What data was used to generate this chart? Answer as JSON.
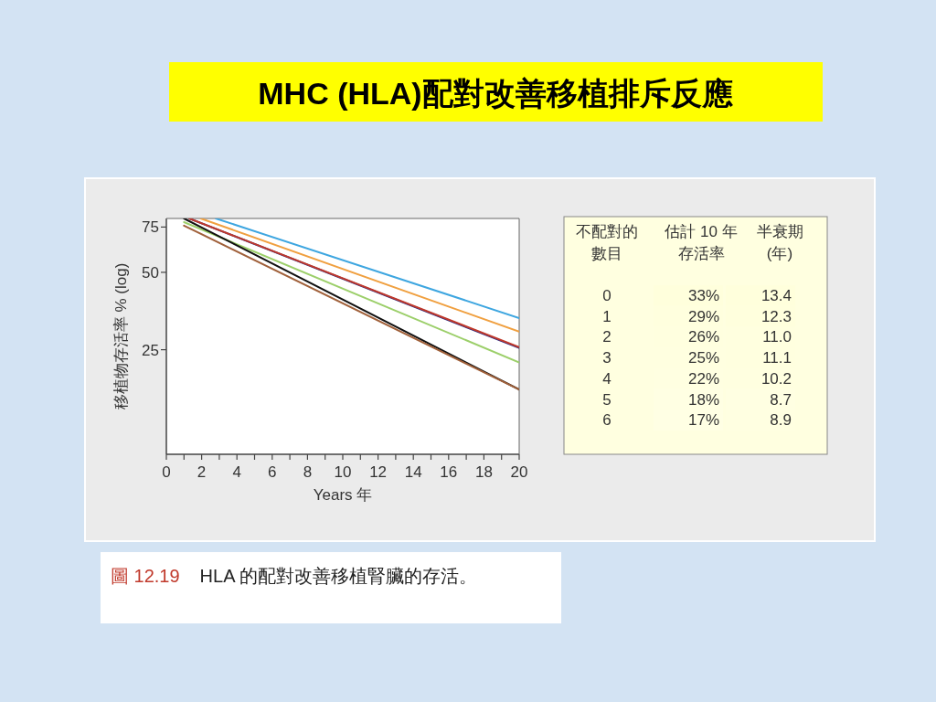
{
  "chart_data": [
    {
      "type": "line",
      "title": "MHC (HLA)配對改善移植排斥反應",
      "xlabel": "Years 年",
      "ylabel": "移植物存活率 % (log)",
      "log": "y",
      "xlim": [
        0,
        20
      ],
      "ylim": [
        9.8,
        81
      ],
      "xticks": [
        0,
        {
          "value": 1,
          "label": null
        },
        2,
        {
          "value": 3,
          "label": null
        },
        4,
        {
          "value": 5,
          "label": null
        },
        6,
        {
          "value": 7,
          "label": null
        },
        8,
        {
          "value": 9,
          "label": null
        },
        10,
        {
          "value": 11,
          "label": null
        },
        12,
        {
          "value": 13,
          "label": null
        },
        14,
        {
          "value": 15,
          "label": null
        },
        16,
        {
          "value": 17,
          "label": null
        },
        18,
        {
          "value": 19,
          "label": null
        },
        20
      ],
      "yticks": [
        25,
        50,
        75
      ],
      "grid": false,
      "marker": "none",
      "line_style": "solid",
      "series": [
        {
          "color": "#3ea6e0",
          "x": [
            2.8,
            20
          ],
          "values": [
            81,
            33.2
          ]
        },
        {
          "color": "#f0a040",
          "x": [
            1.95,
            20
          ],
          "values": [
            81,
            29.4
          ]
        },
        {
          "color": "#2a2a80",
          "x": [
            1.3,
            20
          ],
          "values": [
            81,
            25.4
          ]
        },
        {
          "color": "#c0392b",
          "x": [
            1.3,
            20
          ],
          "values": [
            81,
            25.6
          ]
        },
        {
          "color": "#9ccf6a",
          "x": [
            1,
            20
          ],
          "values": [
            78.4,
            22.3
          ]
        },
        {
          "color": "#111111",
          "x": [
            1,
            20
          ],
          "values": [
            81,
            17.5
          ]
        },
        {
          "color": "#a0603a",
          "x": [
            1,
            20
          ],
          "values": [
            76,
            17.5
          ]
        }
      ],
      "annotations": [
        "圖 12.19",
        "HLA  的配對改善移植腎臟的存活。"
      ]
    },
    {
      "type": "heatmap",
      "ylabel": "不配對的數目",
      "categories": [
        "估計 10 年存活率",
        "半衰期 (年)"
      ],
      "y_categories": [
        "0",
        "1",
        "2",
        "3",
        "4",
        "5",
        "6"
      ],
      "cells": [
        [
          33,
          13.4
        ],
        [
          29,
          12.3
        ],
        [
          26,
          11.0
        ],
        [
          25,
          11.1
        ],
        [
          22,
          10.2
        ],
        [
          18,
          8.7
        ],
        [
          17,
          8.9
        ]
      ],
      "cell_labels": [
        [
          "33%",
          "13.4"
        ],
        [
          "29%",
          "12.3"
        ],
        [
          "26%",
          "11.0"
        ],
        [
          "25%",
          "11.1"
        ],
        [
          "22%",
          "10.2"
        ],
        [
          "18%",
          "8.7"
        ],
        [
          "17%",
          "8.9"
        ]
      ]
    }
  ]
}
